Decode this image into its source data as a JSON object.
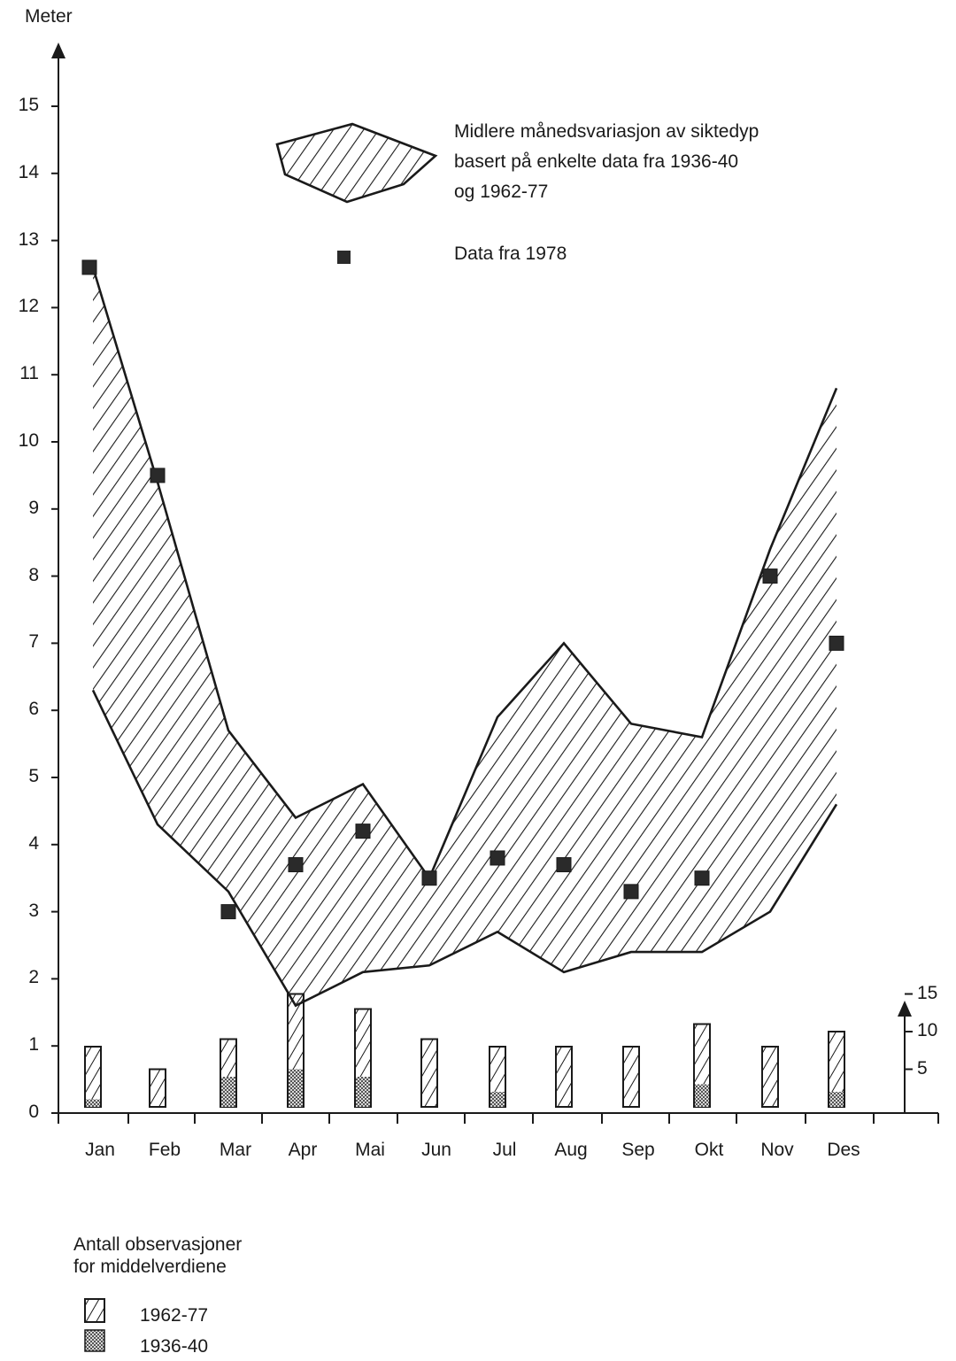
{
  "chart_data": {
    "type": "area",
    "ylabel": "Meter",
    "ylim": [
      0,
      16
    ],
    "yticks": [
      0,
      1,
      2,
      3,
      4,
      5,
      6,
      7,
      8,
      9,
      10,
      11,
      12,
      13,
      14,
      15
    ],
    "categories": [
      "Jan",
      "Feb",
      "Mar",
      "Apr",
      "Mai",
      "Jun",
      "Jul",
      "Aug",
      "Sep",
      "Okt",
      "Nov",
      "Des"
    ],
    "range": {
      "legend": "Midlere månedsvariasjon  av siktedyp basert på enkelte data fra 1936-40 og 1962-77",
      "legend_lines": [
        "Midlere månedsvariasjon  av siktedyp",
        "basert på enkelte data fra 1936-40",
        "og 1962-77"
      ],
      "upper": [
        12.6,
        9.4,
        5.7,
        4.4,
        4.9,
        3.5,
        5.9,
        7.0,
        5.8,
        5.6,
        8.4,
        10.8
      ],
      "lower": [
        6.3,
        4.3,
        3.3,
        1.6,
        2.1,
        2.2,
        2.7,
        2.1,
        2.4,
        2.4,
        3.0,
        4.6
      ]
    },
    "points_1978": {
      "legend": "Data fra 1978",
      "values": [
        12.6,
        9.5,
        3.0,
        3.7,
        4.2,
        3.5,
        3.8,
        3.7,
        3.3,
        3.5,
        8.0,
        7.0
      ]
    },
    "observations": {
      "title_lines": [
        "Antall observasjoner",
        "for middelverdiene"
      ],
      "scale_ticks": [
        5,
        10,
        15
      ],
      "scale_max": 15,
      "series": [
        {
          "name": "1962-77",
          "values": [
            8,
            5,
            9,
            15,
            13,
            9,
            8,
            8,
            8,
            11,
            8,
            10
          ]
        },
        {
          "name": "1936-40",
          "values": [
            1,
            0,
            4,
            5,
            4,
            0,
            2,
            0,
            0,
            3,
            0,
            2
          ]
        }
      ]
    }
  },
  "colors": {
    "ink": "#1a1a1a",
    "marker": "#2a2a2a",
    "dots": "#555555"
  }
}
